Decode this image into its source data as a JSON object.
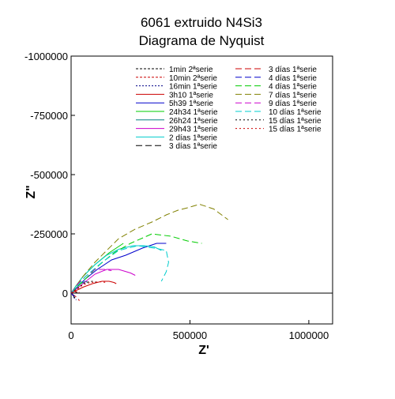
{
  "chart_data": {
    "type": "line",
    "title": "6061 extruido N4Si3",
    "subtitle": "Diagrama de Nyquist",
    "xlabel": "Z'",
    "ylabel": "Z\"",
    "xlim": [
      0,
      1100000
    ],
    "ylim": [
      -1000000,
      130000
    ],
    "y_axis_inverted": true,
    "x_ticks": [
      0,
      500000,
      1000000
    ],
    "x_tick_labels": [
      "0",
      "500000",
      "1000000"
    ],
    "y_ticks": [
      -1000000,
      -750000,
      -500000,
      -250000,
      0
    ],
    "y_tick_labels": [
      "-1000000",
      "-750000",
      "-500000",
      "-250000",
      "0"
    ],
    "zero_line": true,
    "grid": false,
    "legend_position": "top-right",
    "series": [
      {
        "name": "1min 2ªserie",
        "color": "#000000",
        "dash": "3,2",
        "x": [
          0,
          5000,
          10000,
          16000,
          22000,
          30000
        ],
        "y": [
          0,
          -1500,
          -3000,
          -5000,
          -4000,
          -2500
        ]
      },
      {
        "name": "10min 2ªserie",
        "color": "#cc0000",
        "dash": "3,2",
        "x": [
          0,
          6000,
          12000,
          20000,
          28000,
          35000
        ],
        "y": [
          0,
          -2000,
          -4000,
          -6000,
          -4500,
          -3000
        ]
      },
      {
        "name": "16min 1ªserie",
        "color": "#000088",
        "dash": "2,2",
        "x": [
          5000,
          10000,
          16000,
          22000
        ],
        "y": [
          5000,
          15000,
          25000,
          28000
        ]
      },
      {
        "name": "3h10 1ªserie",
        "color": "#cc0000",
        "dash": "",
        "x": [
          0,
          15000,
          30000,
          50000,
          90000,
          130000,
          160000,
          180000,
          190000
        ],
        "y": [
          0,
          -8000,
          -15000,
          -25000,
          -40000,
          -50000,
          -50000,
          -45000,
          -40000
        ]
      },
      {
        "name": "5h39 1ªserie",
        "color": "#0000cc",
        "dash": "",
        "x": [
          0,
          30000,
          60000,
          110000,
          170000,
          230000,
          300000,
          360000,
          400000
        ],
        "y": [
          0,
          -30000,
          -60000,
          -100000,
          -140000,
          -160000,
          -190000,
          -210000,
          -210000
        ]
      },
      {
        "name": "24h34 1ªserie",
        "color": "#00cc00",
        "dash": "",
        "x": [
          0,
          20000,
          50000,
          100000,
          160000,
          220000
        ],
        "y": [
          0,
          -30000,
          -70000,
          -120000,
          -170000,
          -210000
        ]
      },
      {
        "name": "26h24 1ªserie",
        "color": "#008080",
        "dash": "",
        "x": [
          0,
          20000,
          40000,
          60000,
          70000
        ],
        "y": [
          0,
          -20000,
          -40000,
          -50000,
          -45000
        ]
      },
      {
        "name": "29h43 1ªserie",
        "color": "#cc00cc",
        "dash": "",
        "x": [
          0,
          50000,
          100000,
          150000,
          200000,
          250000,
          270000
        ],
        "y": [
          0,
          -40000,
          -80000,
          -100000,
          -100000,
          -85000,
          -75000
        ]
      },
      {
        "name": "2 días 1ªserie",
        "color": "#00cccc",
        "dash": "",
        "x": [
          0,
          50000,
          100000,
          150000,
          200000,
          260000,
          310000,
          350000,
          380000
        ],
        "y": [
          0,
          -70000,
          -120000,
          -160000,
          -185000,
          -200000,
          -200000,
          -195000,
          -180000
        ]
      },
      {
        "name": "3 días 1ªserie",
        "color": "#000000",
        "dash": "8,4",
        "x": [
          0,
          6000,
          12000,
          20000
        ],
        "y": [
          0,
          5000,
          15000,
          25000
        ]
      },
      {
        "name": "3 días 1ªserie",
        "color": "#cc0000",
        "dash": "8,4",
        "x": [
          0,
          10000,
          20000,
          30000,
          35000
        ],
        "y": [
          0,
          8000,
          15000,
          25000,
          32000
        ]
      },
      {
        "name": "4 días 1ªserie",
        "color": "#0000cc",
        "dash": "8,4",
        "x": [
          0,
          5000,
          10000,
          15000
        ],
        "y": [
          0,
          5000,
          10000,
          12000
        ]
      },
      {
        "name": "4 días 1ªserie",
        "color": "#00cc00",
        "dash": "8,4",
        "x": [
          0,
          60000,
          120000,
          180000,
          250000,
          340000,
          420000,
          490000,
          550000
        ],
        "y": [
          0,
          -60000,
          -120000,
          -170000,
          -210000,
          -250000,
          -240000,
          -220000,
          -210000
        ]
      },
      {
        "name": "7 días 1ªserie",
        "color": "#808000",
        "dash": "8,4",
        "x": [
          0,
          50000,
          100000,
          150000,
          200000,
          270000,
          340000,
          400000,
          450000,
          490000,
          540000,
          600000,
          660000
        ],
        "y": [
          0,
          -70000,
          -130000,
          -180000,
          -230000,
          -270000,
          -300000,
          -330000,
          -350000,
          -360000,
          -375000,
          -355000,
          -310000
        ]
      },
      {
        "name": "9 días 1ªserie",
        "color": "#cc00cc",
        "dash": "8,4",
        "x": [
          0,
          30000,
          60000,
          100000,
          140000,
          170000
        ],
        "y": [
          0,
          -40000,
          -70000,
          -100000,
          -100000,
          -95000
        ]
      },
      {
        "name": "10 días 1ªserie",
        "color": "#00cccc",
        "dash": "8,4",
        "x": [
          0,
          60000,
          130000,
          200000,
          280000,
          350000,
          400000,
          410000,
          400000,
          380000
        ],
        "y": [
          0,
          -70000,
          -130000,
          -180000,
          -200000,
          -190000,
          -180000,
          -130000,
          -90000,
          -50000
        ]
      },
      {
        "name": "15 días 1ªserie",
        "color": "#000000",
        "dash": "2,3",
        "x": [
          0,
          20000,
          40000,
          60000,
          90000,
          110000
        ],
        "y": [
          0,
          -15000,
          -30000,
          -45000,
          -50000,
          -45000
        ]
      },
      {
        "name": "15 días 1ªserie",
        "color": "#cc0000",
        "dash": "2,3",
        "x": [
          0,
          15000,
          30000,
          50000,
          80000,
          120000,
          150000
        ],
        "y": [
          0,
          -10000,
          -20000,
          -35000,
          -45000,
          -48000,
          -45000
        ]
      }
    ]
  }
}
